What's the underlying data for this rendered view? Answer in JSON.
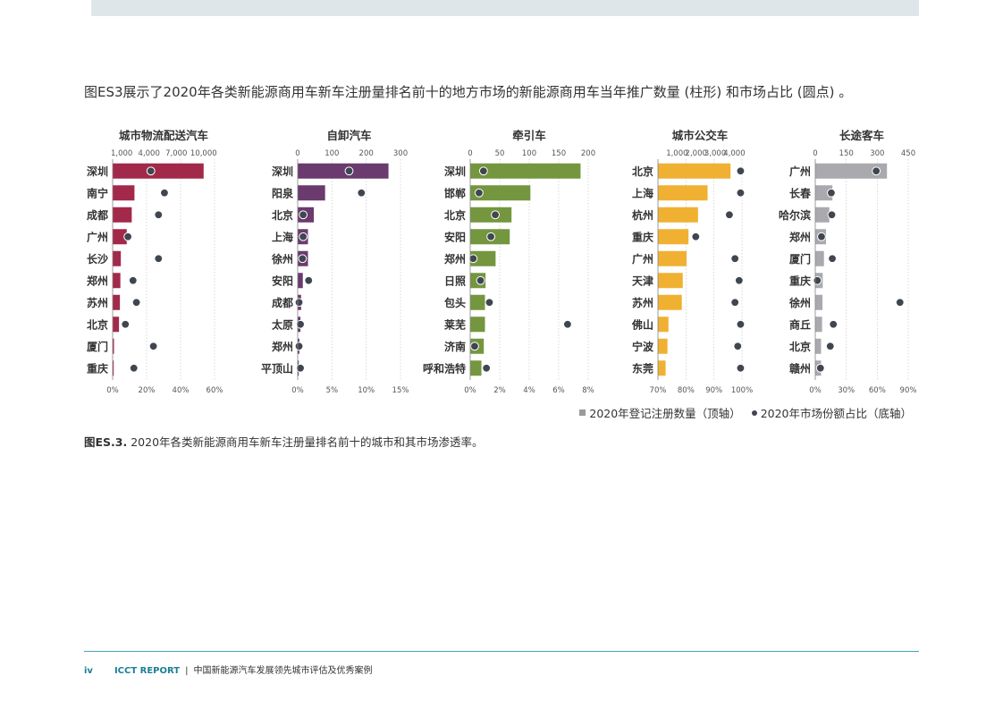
{
  "intro_text": "图ES3展示了2020年各类新能源商用车新车注册量排名前十的地方市场的新能源商用车当年推广数量 (柱形) 和市场占比 (圆点) 。",
  "legend": {
    "bars_label": "2020年登记注册数量（顶轴）",
    "dots_label": "2020年市场份额占比（底轴）"
  },
  "caption": {
    "label": "图ES.3.",
    "text": " 2020年各类新能源商用车新车注册量排名前十的城市和其市场渗透率。"
  },
  "footer": {
    "page": "iv",
    "org": "ICCT REPORT",
    "separator": "|",
    "title": "中国新能源汽车发展领先城市评估及优秀案例"
  },
  "colors": {
    "logistics": "#a3294a",
    "dump": "#6b3a6e",
    "tractor": "#74963f",
    "bus": "#f0b132",
    "coach": "#a9a9ae",
    "dot": "#3f4650"
  },
  "chart_data": [
    {
      "type": "bar",
      "title": "城市物流配送汽车",
      "color_key": "logistics",
      "categories": [
        "深圳",
        "南宁",
        "成都",
        "广州",
        "长沙",
        "郑州",
        "苏州",
        "北京",
        "厦门",
        "重庆"
      ],
      "values": [
        10000,
        2400,
        2100,
        1550,
        900,
        850,
        800,
        700,
        150,
        60
      ],
      "shares": [
        0.225,
        0.305,
        0.27,
        0.09,
        0.27,
        0.12,
        0.14,
        0.075,
        0.24,
        0.125
      ],
      "top_axis": {
        "range": [
          0,
          11200
        ],
        "ticks": [
          1000,
          4000,
          7000,
          10000
        ],
        "tick_labels": [
          "1,000",
          "4,000",
          "7,000",
          "10,000"
        ]
      },
      "bottom_axis": {
        "range": [
          0,
          0.6
        ],
        "ticks": [
          0,
          0.2,
          0.4,
          0.6
        ],
        "tick_labels": [
          "0%",
          "20%",
          "40%",
          "60%"
        ]
      }
    },
    {
      "type": "bar",
      "title": "自卸汽车",
      "color_key": "dump",
      "categories": [
        "深圳",
        "阳泉",
        "北京",
        "上海",
        "徐州",
        "安阳",
        "成都",
        "太原",
        "郑州",
        "平顶山"
      ],
      "values": [
        265,
        80,
        47,
        30,
        30,
        15,
        10,
        8,
        5,
        3
      ],
      "shares": [
        0.075,
        0.093,
        0.008,
        0.008,
        0.007,
        0.016,
        0.002,
        0.004,
        0.002,
        0.004
      ],
      "top_axis": {
        "range": [
          0,
          300
        ],
        "ticks": [
          0,
          100,
          200,
          300
        ],
        "tick_labels": [
          "0",
          "100",
          "200",
          "300"
        ]
      },
      "bottom_axis": {
        "range": [
          0,
          0.15
        ],
        "ticks": [
          0,
          0.05,
          0.1,
          0.15
        ],
        "tick_labels": [
          "0%",
          "5%",
          "10%",
          "15%"
        ]
      }
    },
    {
      "type": "bar",
      "title": "牵引车",
      "color_key": "tractor",
      "categories": [
        "深圳",
        "邯郸",
        "北京",
        "安阳",
        "郑州",
        "日照",
        "包头",
        "莱芜",
        "济南",
        "呼和浩特"
      ],
      "values": [
        187,
        102,
        70,
        67,
        43,
        26,
        25,
        25,
        23,
        19
      ],
      "shares": [
        0.009,
        0.006,
        0.017,
        0.014,
        0.002,
        0.007,
        0.013,
        0.066,
        0.003,
        0.011
      ],
      "top_axis": {
        "range": [
          0,
          200
        ],
        "ticks": [
          0,
          50,
          100,
          150,
          200
        ],
        "tick_labels": [
          "0",
          "50",
          "100",
          "150",
          "200"
        ]
      },
      "bottom_axis": {
        "range": [
          0,
          0.08
        ],
        "ticks": [
          0,
          0.02,
          0.04,
          0.06,
          0.08
        ],
        "tick_labels": [
          "0%",
          "2%",
          "4%",
          "6%",
          "8%"
        ]
      }
    },
    {
      "type": "bar",
      "title": "城市公交车",
      "color_key": "bus",
      "categories": [
        "北京",
        "上海",
        "杭州",
        "重庆",
        "广州",
        "天津",
        "苏州",
        "佛山",
        "宁波",
        "东莞"
      ],
      "values": [
        3800,
        2600,
        2100,
        1600,
        1500,
        1300,
        1250,
        550,
        500,
        400
      ],
      "shares": [
        0.995,
        0.995,
        0.955,
        0.835,
        0.975,
        0.99,
        0.975,
        0.995,
        0.985,
        0.995
      ],
      "top_axis": {
        "range": [
          0,
          4400
        ],
        "ticks": [
          1000,
          2000,
          3000,
          4000
        ],
        "tick_labels": [
          "1,000",
          "2,000",
          "3,000",
          "4,000"
        ]
      },
      "bottom_axis": {
        "range": [
          0.7,
          1.0
        ],
        "ticks": [
          0.7,
          0.8,
          0.9,
          1.0
        ],
        "tick_labels": [
          "70%",
          "80%",
          "90%",
          "100%"
        ]
      }
    },
    {
      "type": "bar",
      "title": "长途客车",
      "color_key": "coach",
      "categories": [
        "广州",
        "长春",
        "哈尔滨",
        "郑州",
        "厦门",
        "重庆",
        "徐州",
        "商丘",
        "北京",
        "赣州"
      ],
      "values": [
        347,
        83,
        68,
        52,
        42,
        36,
        35,
        33,
        28,
        28
      ],
      "shares": [
        0.59,
        0.155,
        0.16,
        0.06,
        0.165,
        0.02,
        0.82,
        0.175,
        0.145,
        0.05
      ],
      "top_axis": {
        "range": [
          0,
          450
        ],
        "ticks": [
          0,
          150,
          300,
          450
        ],
        "tick_labels": [
          "0",
          "150",
          "300",
          "450"
        ]
      },
      "bottom_axis": {
        "range": [
          0,
          0.9
        ],
        "ticks": [
          0,
          0.3,
          0.6,
          0.9
        ],
        "tick_labels": [
          "0%",
          "30%",
          "60%",
          "90%"
        ]
      }
    }
  ]
}
